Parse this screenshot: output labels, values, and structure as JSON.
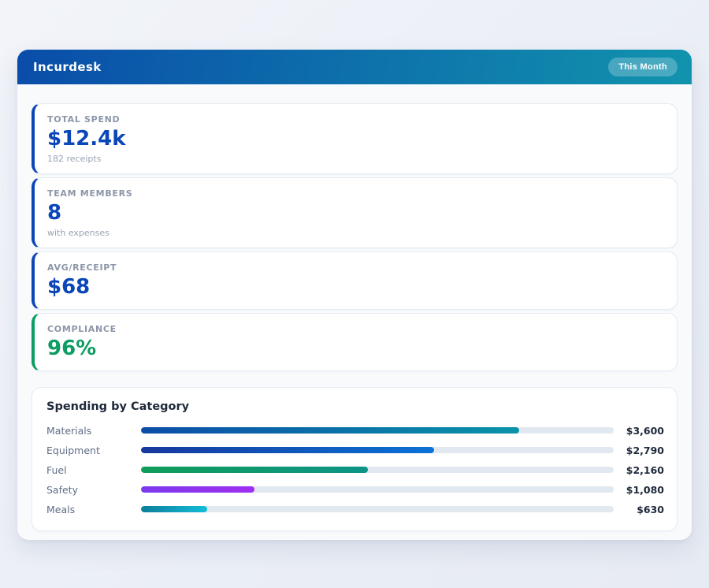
{
  "header": {
    "title": "Incurdesk",
    "badge": "This Month",
    "gradient_from": "#0a4da9",
    "gradient_to": "#1193ad"
  },
  "stats": [
    {
      "label": "TOTAL SPEND",
      "value": "$12.4k",
      "sub": "182 receipts",
      "accent": "#0b46b8"
    },
    {
      "label": "TEAM MEMBERS",
      "value": "8",
      "sub": "with expenses",
      "accent": "#0b46b8"
    },
    {
      "label": "AVG/RECEIPT",
      "value": "$68",
      "sub": "",
      "accent": "#0b46b8"
    },
    {
      "label": "COMPLIANCE",
      "value": "96%",
      "sub": "",
      "accent": "#0d9d62"
    }
  ],
  "spending": {
    "title": "Spending by Category",
    "track_color": "#e2e8f0",
    "rows": [
      {
        "label": "Materials",
        "value": "$3,600",
        "amount": 3600,
        "percent": 80,
        "color_from": "#0b4da8",
        "color_to": "#0a93a8"
      },
      {
        "label": "Equipment",
        "value": "$2,790",
        "amount": 2790,
        "percent": 62,
        "color_from": "#16389c",
        "color_to": "#0b72d6"
      },
      {
        "label": "Fuel",
        "value": "$2,160",
        "amount": 2160,
        "percent": 48,
        "color_from": "#0f9d58",
        "color_to": "#0d9488"
      },
      {
        "label": "Safety",
        "value": "$1,080",
        "amount": 1080,
        "percent": 24,
        "color_from": "#7c3aed",
        "color_to": "#a02ef0"
      },
      {
        "label": "Meals",
        "value": "$630",
        "amount": 630,
        "percent": 14,
        "color_from": "#0e7e9c",
        "color_to": "#13bcd8"
      }
    ]
  },
  "chart_data": {
    "type": "bar",
    "title": "Spending by Category",
    "categories": [
      "Materials",
      "Equipment",
      "Fuel",
      "Safety",
      "Meals"
    ],
    "values": [
      3600,
      2790,
      2160,
      1080,
      630
    ],
    "xlabel": "",
    "ylabel": "",
    "xlim": [
      0,
      4500
    ],
    "orientation": "horizontal",
    "grid": false,
    "data_labels": [
      "$3,600",
      "$2,790",
      "$2,160",
      "$1,080",
      "$630"
    ]
  }
}
